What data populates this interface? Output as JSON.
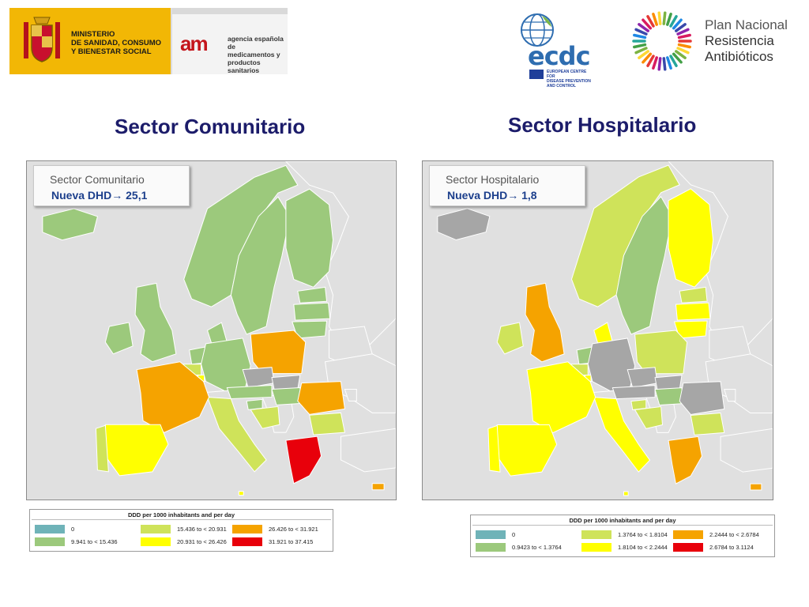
{
  "header": {
    "ministry_lines": [
      "MINISTERIO",
      "DE SANIDAD, CONSUMO",
      "Y BIENESTAR SOCIAL"
    ],
    "aemps_mark": "am",
    "aemps_lines": [
      "agencia española de",
      "medicamentos y",
      "productos sanitarios"
    ],
    "ecdc_word": "ecdc",
    "ecdc_lines": [
      "EUROPEAN CENTRE FOR",
      "DISEASE PREVENTION",
      "AND CONTROL"
    ],
    "pnra_lines": [
      "Plan Nacional",
      "Resistencia",
      "Antibióticos"
    ]
  },
  "colors": {
    "zero": "#6fb3b8",
    "c1": "#9cc97c",
    "c2": "#cfe35a",
    "c3": "#ffff00",
    "c4": "#f5a300",
    "c5": "#e8000b",
    "nodata": "#a6a6a6",
    "outside": "#e0e0e0"
  },
  "panels": [
    {
      "title": "Sector Comunitario",
      "callout_title": "Sector Comunitario",
      "callout_value": "Nueva DHD→ 25,1",
      "legend_header": "DDD per 1000 inhabitants and per day",
      "legend": [
        {
          "label": "0",
          "color": "#6fb3b8"
        },
        {
          "label": "9.941 to < 15.436",
          "color": "#9cc97c"
        },
        {
          "label": "15.436 to < 20.931",
          "color": "#cfe35a"
        },
        {
          "label": "20.931 to < 26.426",
          "color": "#ffff00"
        },
        {
          "label": "26.426 to < 31.921",
          "color": "#f5a300"
        },
        {
          "label": "31.921 to 37.415",
          "color": "#e8000b"
        }
      ],
      "countries": {
        "iceland": "#9cc97c",
        "ireland": "#9cc97c",
        "uk": "#9cc97c",
        "norway": "#9cc97c",
        "sweden": "#9cc97c",
        "finland": "#9cc97c",
        "estonia": "#9cc97c",
        "latvia": "#9cc97c",
        "lithuania": "#9cc97c",
        "denmark": "#9cc97c",
        "netherlands": "#9cc97c",
        "belgium": "#cfe35a",
        "luxembourg": "#ffff00",
        "germany": "#9cc97c",
        "poland": "#f5a300",
        "czech": "#a6a6a6",
        "slovakia": "#a6a6a6",
        "austria": "#9cc97c",
        "hungary": "#9cc97c",
        "slovenia": "#9cc97c",
        "croatia": "#cfe35a",
        "romania": "#f5a300",
        "bulgaria": "#cfe35a",
        "greece": "#e8000b",
        "cyprus": "#f5a300",
        "malta": "#ffff00",
        "italy": "#cfe35a",
        "france": "#f5a300",
        "spain": "#ffff00",
        "portugal": "#cfe35a"
      }
    },
    {
      "title": "Sector Hospitalario",
      "callout_title": "Sector Hospitalario",
      "callout_value": "Nueva DHD→ 1,8",
      "legend_header": "DDD per 1000 inhabitants and per day",
      "legend": [
        {
          "label": "0",
          "color": "#6fb3b8"
        },
        {
          "label": "0.9423 to < 1.3764",
          "color": "#9cc97c"
        },
        {
          "label": "1.3764 to < 1.8104",
          "color": "#cfe35a"
        },
        {
          "label": "1.8104 to < 2.2444",
          "color": "#ffff00"
        },
        {
          "label": "2.2444 to < 2.6784",
          "color": "#f5a300"
        },
        {
          "label": "2.6784 to 3.1124",
          "color": "#e8000b"
        }
      ],
      "countries": {
        "iceland": "#a6a6a6",
        "ireland": "#cfe35a",
        "uk": "#f5a300",
        "norway": "#cfe35a",
        "sweden": "#9cc97c",
        "finland": "#ffff00",
        "estonia": "#cfe35a",
        "latvia": "#ffff00",
        "lithuania": "#ffff00",
        "denmark": "#ffff00",
        "netherlands": "#9cc97c",
        "belgium": "#cfe35a",
        "luxembourg": "#ffff00",
        "germany": "#a6a6a6",
        "poland": "#cfe35a",
        "czech": "#a6a6a6",
        "slovakia": "#a6a6a6",
        "austria": "#a6a6a6",
        "hungary": "#9cc97c",
        "slovenia": "#cfe35a",
        "croatia": "#cfe35a",
        "romania": "#a6a6a6",
        "bulgaria": "#cfe35a",
        "greece": "#f5a300",
        "cyprus": "#f5a300",
        "malta": "#ffff00",
        "italy": "#ffff00",
        "france": "#ffff00",
        "spain": "#ffff00",
        "portugal": "#ffff00"
      }
    }
  ]
}
